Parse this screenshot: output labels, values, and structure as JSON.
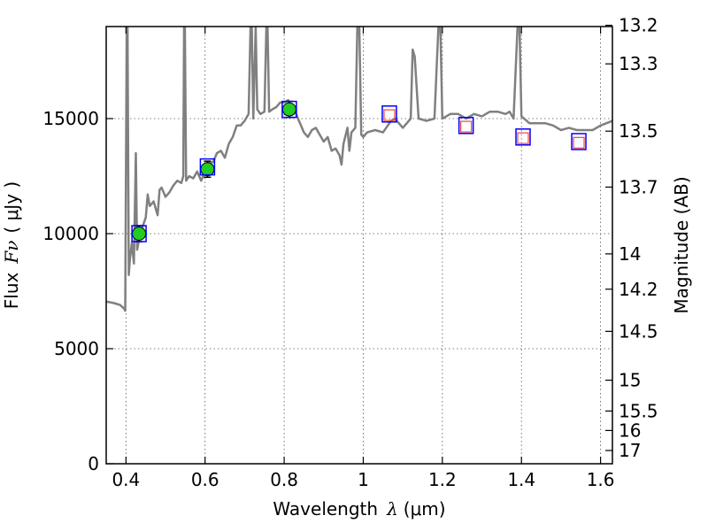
{
  "chart_data": {
    "type": "line",
    "xlabel_prefix": "Wavelength",
    "xlabel_symbol": "λ",
    "xlabel_unit": "(μm)",
    "ylabel_prefix": "Flux",
    "ylabel_symbol": "Fν",
    "ylabel_unit": "( μJy )",
    "y2label": "Magnitude (AB)",
    "xlim": [
      0.35,
      1.63
    ],
    "ylim": [
      0,
      19000
    ],
    "grid": true,
    "x_ticks": [
      0.4,
      0.6,
      0.8,
      1.0,
      1.2,
      1.4,
      1.6
    ],
    "x_tick_labels": [
      "0.4",
      "0.6",
      "0.8",
      "1",
      "1.2",
      "1.4",
      "1.6"
    ],
    "y_ticks": [
      0,
      5000,
      10000,
      15000
    ],
    "y_tick_labels": [
      "0",
      "5000",
      "10000",
      "15000"
    ],
    "mag_ticks": [
      13.2,
      13.3,
      13.5,
      13.7,
      14,
      14.2,
      14.5,
      15,
      15.5,
      16,
      17
    ],
    "mag_tick_labels": [
      "13.2",
      "13.3",
      "13.5",
      "13.7",
      "14",
      "14.2",
      "14.5",
      "15",
      "15.5",
      "16",
      "17"
    ],
    "colors": {
      "spectrum": "#808080",
      "observed_fill": "#22cc22",
      "box": "#0000ff",
      "model_square": "#ee4444",
      "errorbar": "#000000",
      "grid": "#555555"
    },
    "series": [
      {
        "style": "spectrum",
        "points": [
          [
            0.35,
            7050
          ],
          [
            0.37,
            6980
          ],
          [
            0.385,
            6900
          ],
          [
            0.395,
            6750
          ],
          [
            0.398,
            6650
          ],
          [
            0.402,
            19000
          ],
          [
            0.404,
            19000
          ],
          [
            0.407,
            8200
          ],
          [
            0.41,
            8900
          ],
          [
            0.415,
            9600
          ],
          [
            0.42,
            8700
          ],
          [
            0.425,
            13500
          ],
          [
            0.428,
            9300
          ],
          [
            0.435,
            9900
          ],
          [
            0.44,
            10200
          ],
          [
            0.45,
            10700
          ],
          [
            0.455,
            11700
          ],
          [
            0.46,
            11200
          ],
          [
            0.47,
            11400
          ],
          [
            0.48,
            10800
          ],
          [
            0.485,
            11900
          ],
          [
            0.49,
            12000
          ],
          [
            0.5,
            11600
          ],
          [
            0.51,
            11800
          ],
          [
            0.52,
            12100
          ],
          [
            0.53,
            12300
          ],
          [
            0.54,
            12200
          ],
          [
            0.545,
            12500
          ],
          [
            0.547,
            19000
          ],
          [
            0.549,
            19000
          ],
          [
            0.552,
            12300
          ],
          [
            0.56,
            12500
          ],
          [
            0.57,
            12400
          ],
          [
            0.58,
            12700
          ],
          [
            0.59,
            12300
          ],
          [
            0.6,
            12700
          ],
          [
            0.61,
            13100
          ],
          [
            0.62,
            13100
          ],
          [
            0.63,
            13500
          ],
          [
            0.64,
            13600
          ],
          [
            0.65,
            13300
          ],
          [
            0.66,
            13900
          ],
          [
            0.67,
            14200
          ],
          [
            0.68,
            14700
          ],
          [
            0.69,
            14700
          ],
          [
            0.7,
            14900
          ],
          [
            0.71,
            15200
          ],
          [
            0.715,
            19000
          ],
          [
            0.718,
            19000
          ],
          [
            0.722,
            15000
          ],
          [
            0.728,
            19000
          ],
          [
            0.732,
            15400
          ],
          [
            0.74,
            15200
          ],
          [
            0.75,
            15300
          ],
          [
            0.755,
            19000
          ],
          [
            0.758,
            19000
          ],
          [
            0.762,
            15300
          ],
          [
            0.77,
            15400
          ],
          [
            0.78,
            15500
          ],
          [
            0.79,
            15700
          ],
          [
            0.8,
            15700
          ],
          [
            0.81,
            15800
          ],
          [
            0.82,
            15500
          ],
          [
            0.83,
            15200
          ],
          [
            0.84,
            14800
          ],
          [
            0.85,
            14400
          ],
          [
            0.86,
            14200
          ],
          [
            0.87,
            14500
          ],
          [
            0.88,
            14600
          ],
          [
            0.89,
            14300
          ],
          [
            0.9,
            14000
          ],
          [
            0.91,
            14200
          ],
          [
            0.92,
            13600
          ],
          [
            0.93,
            13700
          ],
          [
            0.94,
            13400
          ],
          [
            0.945,
            13000
          ],
          [
            0.95,
            13900
          ],
          [
            0.96,
            14600
          ],
          [
            0.965,
            13600
          ],
          [
            0.97,
            14400
          ],
          [
            0.98,
            14600
          ],
          [
            0.985,
            19000
          ],
          [
            0.99,
            19000
          ],
          [
            0.995,
            14300
          ],
          [
            1.0,
            14200
          ],
          [
            1.01,
            14400
          ],
          [
            1.03,
            14500
          ],
          [
            1.05,
            14400
          ],
          [
            1.07,
            14900
          ],
          [
            1.08,
            15000
          ],
          [
            1.1,
            14600
          ],
          [
            1.12,
            15000
          ],
          [
            1.125,
            18000
          ],
          [
            1.13,
            17700
          ],
          [
            1.14,
            15000
          ],
          [
            1.16,
            14900
          ],
          [
            1.18,
            15000
          ],
          [
            1.19,
            19000
          ],
          [
            1.195,
            19000
          ],
          [
            1.2,
            15000
          ],
          [
            1.22,
            15200
          ],
          [
            1.24,
            15200
          ],
          [
            1.26,
            15000
          ],
          [
            1.28,
            15200
          ],
          [
            1.3,
            15100
          ],
          [
            1.32,
            15300
          ],
          [
            1.34,
            15300
          ],
          [
            1.36,
            15200
          ],
          [
            1.37,
            15300
          ],
          [
            1.38,
            15000
          ],
          [
            1.39,
            19000
          ],
          [
            1.395,
            19000
          ],
          [
            1.4,
            15100
          ],
          [
            1.42,
            14800
          ],
          [
            1.44,
            14800
          ],
          [
            1.46,
            14800
          ],
          [
            1.48,
            14700
          ],
          [
            1.5,
            14500
          ],
          [
            1.52,
            14600
          ],
          [
            1.54,
            14500
          ],
          [
            1.56,
            14500
          ],
          [
            1.58,
            14500
          ],
          [
            1.6,
            14700
          ],
          [
            1.63,
            14900
          ]
        ]
      },
      {
        "style": "observed",
        "points": [
          [
            0.433,
            10000,
            350
          ],
          [
            0.606,
            12800,
            350
          ],
          [
            0.813,
            15400,
            350
          ]
        ]
      },
      {
        "style": "model-box",
        "points": [
          [
            0.433,
            10000
          ],
          [
            0.606,
            12900
          ],
          [
            0.813,
            15400
          ],
          [
            1.066,
            15200
          ],
          [
            1.26,
            14700
          ],
          [
            1.404,
            14200
          ],
          [
            1.545,
            14000
          ]
        ]
      },
      {
        "style": "model-square",
        "points": [
          [
            1.066,
            15150
          ],
          [
            1.26,
            14650
          ],
          [
            1.404,
            14150
          ],
          [
            1.545,
            13950
          ]
        ]
      }
    ]
  }
}
